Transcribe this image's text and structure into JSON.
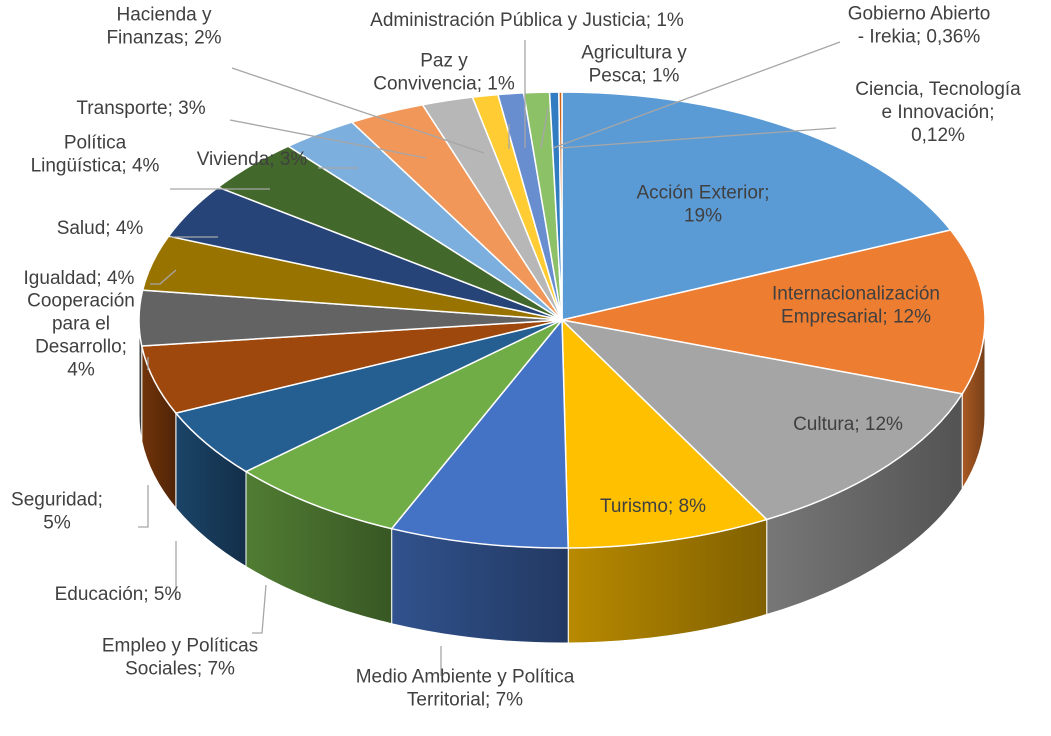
{
  "chart_data": {
    "type": "pie",
    "style": "3d-exploded-pie",
    "title": "",
    "slices": [
      {
        "label": "Acción Exterior",
        "value": 19,
        "display": "19%",
        "color": "#5b9bd5"
      },
      {
        "label": "Internacionalización Empresarial",
        "value": 12,
        "display": "12%",
        "color": "#ed7d31"
      },
      {
        "label": "Cultura",
        "value": 12,
        "display": "12%",
        "color": "#a5a5a5"
      },
      {
        "label": "Turismo",
        "value": 8,
        "display": "8%",
        "color": "#ffc000"
      },
      {
        "label": "Medio Ambiente y Política Territorial",
        "value": 7,
        "display": "7%",
        "color": "#4472c4"
      },
      {
        "label": "Empleo y Políticas Sociales",
        "value": 7,
        "display": "7%",
        "color": "#70ad47"
      },
      {
        "label": "Educación",
        "value": 5,
        "display": "5%",
        "color": "#255e91"
      },
      {
        "label": "Seguridad",
        "value": 5,
        "display": "5%",
        "color": "#9e480e"
      },
      {
        "label": "Cooperación para el Desarrollo",
        "value": 4,
        "display": "4%",
        "color": "#636363"
      },
      {
        "label": "Igualdad",
        "value": 4,
        "display": "4%",
        "color": "#997300"
      },
      {
        "label": "Salud",
        "value": 4,
        "display": "4%",
        "color": "#264478"
      },
      {
        "label": "Política Lingüística",
        "value": 4,
        "display": "4%",
        "color": "#43682b"
      },
      {
        "label": "Vivienda",
        "value": 3,
        "display": "3%",
        "color": "#7cafdd"
      },
      {
        "label": "Transporte",
        "value": 3,
        "display": "3%",
        "color": "#f1975a"
      },
      {
        "label": "Hacienda y Finanzas",
        "value": 2,
        "display": "2%",
        "color": "#b7b7b7"
      },
      {
        "label": "Paz y Convivencia",
        "value": 1,
        "display": "1%",
        "color": "#ffcd33"
      },
      {
        "label": "Administración Pública y Justicia",
        "value": 1,
        "display": "1%",
        "color": "#698ed0"
      },
      {
        "label": "Agricultura y Pesca",
        "value": 1,
        "display": "1%",
        "color": "#8cc168"
      },
      {
        "label": "Gobierno Abierto - Irekia",
        "value": 0.36,
        "display": "0,36%",
        "color": "#327dc2"
      },
      {
        "label": "Ciencia, Tecnología e Innovación",
        "value": 0.12,
        "display": "0,12%",
        "color": "#d26012"
      }
    ],
    "data_labels": [
      {
        "lines": [
          "Acción Exterior;",
          "19%"
        ]
      },
      {
        "lines": [
          "Internacionalización",
          "Empresarial; 12%"
        ]
      },
      {
        "lines": [
          "Cultura; 12%"
        ]
      },
      {
        "lines": [
          "Turismo; 8%"
        ]
      },
      {
        "lines": [
          "Medio Ambiente y Política",
          "Territorial; 7%"
        ]
      },
      {
        "lines": [
          "Empleo y Políticas",
          "Sociales; 7%"
        ]
      },
      {
        "lines": [
          "Educación; 5%"
        ]
      },
      {
        "lines": [
          "Seguridad;",
          "5%"
        ]
      },
      {
        "lines": [
          "Cooperación",
          "para el",
          "Desarrollo;",
          "4%"
        ]
      },
      {
        "lines": [
          "Igualdad; 4%"
        ]
      },
      {
        "lines": [
          "Salud; 4%"
        ]
      },
      {
        "lines": [
          "Política",
          "Lingüística; 4%"
        ]
      },
      {
        "lines": [
          "Vivienda; 3%"
        ]
      },
      {
        "lines": [
          "Transporte; 3%"
        ]
      },
      {
        "lines": [
          "Hacienda y",
          "Finanzas; 2%"
        ]
      },
      {
        "lines": [
          "Paz y",
          "Convivencia; 1%"
        ]
      },
      {
        "lines": [
          "Administración Pública y Justicia; 1%"
        ]
      },
      {
        "lines": [
          "Agricultura y",
          "Pesca; 1%"
        ]
      },
      {
        "lines": [
          "Gobierno Abierto",
          "- Irekia; 0,36%"
        ]
      },
      {
        "lines": [
          "Ciencia, Tecnología",
          "e Innovación;",
          "0,12%"
        ]
      }
    ],
    "legend": "none",
    "grid": false
  }
}
